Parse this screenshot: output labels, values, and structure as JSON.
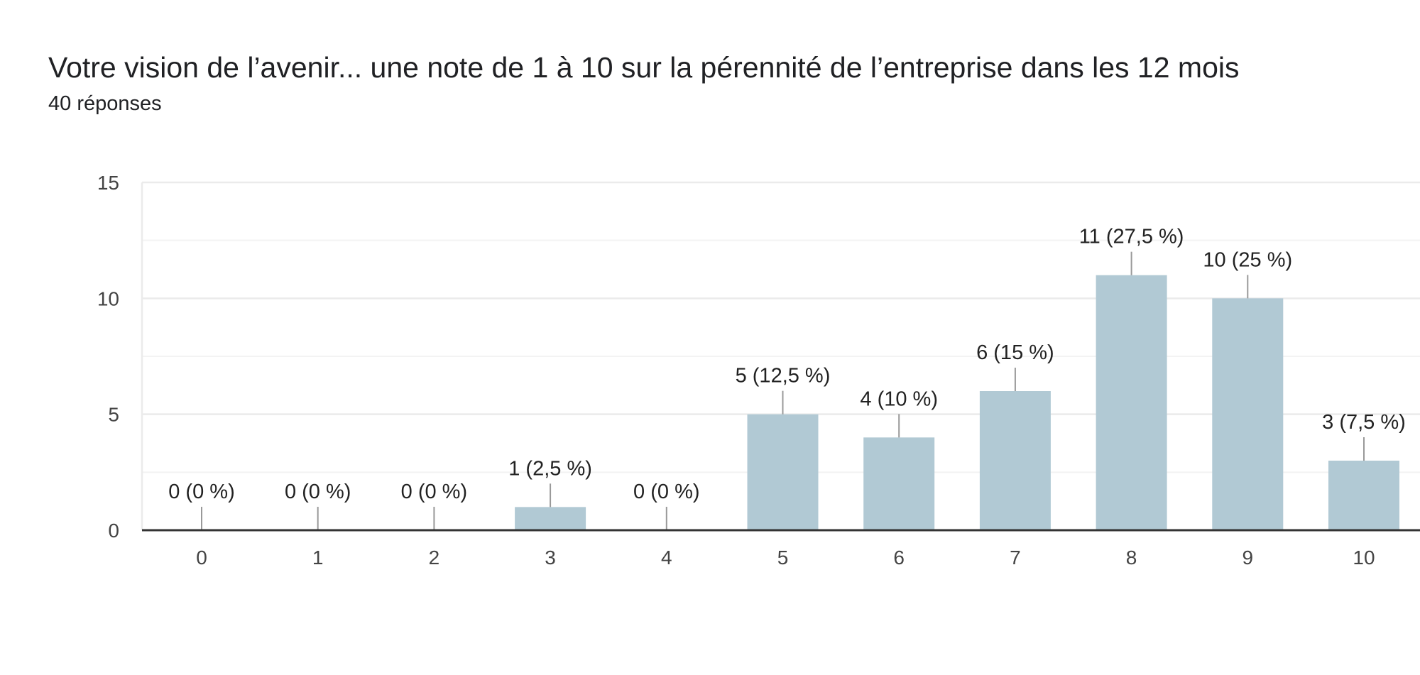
{
  "chart_data": {
    "type": "bar",
    "title": "Votre vision de l’avenir... une note de 1 à 10 sur la pérennité de l’entreprise dans les 12 mois",
    "subtitle": "40 réponses",
    "xlabel": "",
    "ylabel": "",
    "categories": [
      "0",
      "1",
      "2",
      "3",
      "4",
      "5",
      "6",
      "7",
      "8",
      "9",
      "10"
    ],
    "values": [
      0,
      0,
      0,
      1,
      0,
      5,
      4,
      6,
      11,
      10,
      3
    ],
    "data_labels": [
      "0 (0 %)",
      "0 (0 %)",
      "0 (0 %)",
      "1 (2,5 %)",
      "0 (0 %)",
      "5 (12,5 %)",
      "4 (10 %)",
      "6 (15 %)",
      "11 (27,5 %)",
      "10 (25 %)",
      "3 (7,5 %)"
    ],
    "ylim": [
      0,
      15
    ],
    "yticks": [
      0,
      5,
      10,
      15
    ],
    "grid": true,
    "legend": "none",
    "colors": {
      "bar": "#b1c9d4",
      "grid": "#ebebeb",
      "minor_grid": "#f3f3f3",
      "axis": "#333333",
      "leader": "#999999"
    }
  }
}
